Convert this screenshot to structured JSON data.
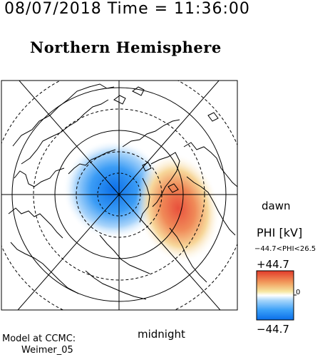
{
  "header": {
    "timestamp": "08/07/2018 Time = 11:36:00",
    "title": "Northern Hemisphere"
  },
  "map": {
    "projection": "polar",
    "hemisphere": "northern",
    "grid_circles": [
      "solid",
      "dashed",
      "solid",
      "dashed",
      "solid",
      "dashed"
    ],
    "meridian_lines": 6,
    "local_time_labels": {
      "dawn": "dawn",
      "midnight": "midnight"
    },
    "potential_pattern": {
      "min_cell_color": "#1e8cf0",
      "max_cell_color": "#e8503c",
      "background": "#ffffff"
    }
  },
  "colorbar": {
    "title": "PHI [kV]",
    "range_text": "−44.7<PHI<26.5",
    "max_label": "+44.7",
    "min_label": "−44.7",
    "zero_label": "0",
    "colors": [
      "#0a6eea",
      "#3aa0f8",
      "#a8d6fb",
      "#ffffff",
      "#f6e6a0",
      "#f2a060",
      "#e23a2a"
    ]
  },
  "footer": {
    "model_line1": "Model at CCMC:",
    "model_line2": "Weimer_05"
  }
}
